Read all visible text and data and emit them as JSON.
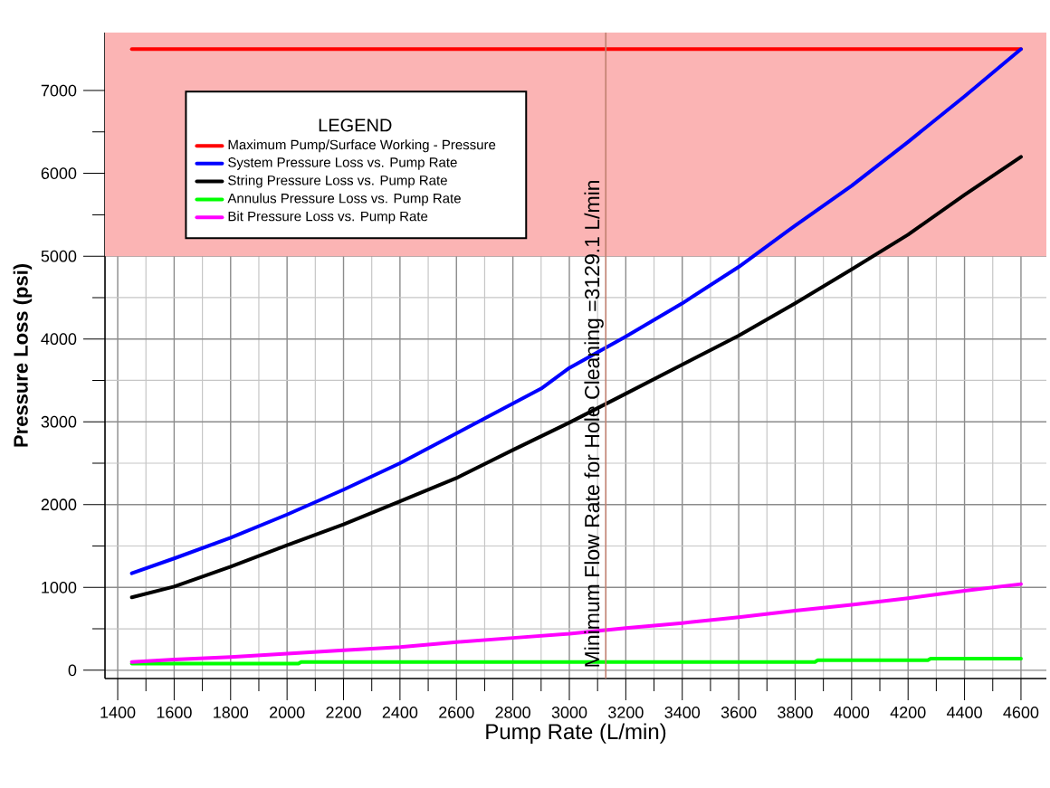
{
  "chart_data": {
    "type": "line",
    "xlabel": "Pump Rate (L/min)",
    "ylabel": "Pressure Loss (psi)",
    "legend_title": "LEGEND",
    "xlim": [
      1355,
      4690
    ],
    "ylim": [
      -100,
      7700
    ],
    "xticks": [
      1400,
      1600,
      1800,
      2000,
      2200,
      2400,
      2600,
      2800,
      3000,
      3200,
      3400,
      3600,
      3800,
      4000,
      4200,
      4400,
      4600
    ],
    "yticks": [
      0,
      1000,
      2000,
      3000,
      4000,
      5000,
      6000,
      7000
    ],
    "grid": true,
    "legend": "top left",
    "marker": "none",
    "line_style": "solid",
    "series": [
      {
        "name": "Maximum Pump/Surface Working - Pressure",
        "color": "#ff0000",
        "x": [
          1450,
          4600
        ],
        "values": [
          7500,
          7500
        ]
      },
      {
        "name": "System Pressure Loss vs. Pump Rate",
        "color": "#0000ff",
        "x": [
          1450,
          1600,
          1800,
          2000,
          2200,
          2400,
          2600,
          2800,
          2900,
          3000,
          3200,
          3400,
          3600,
          3800,
          4000,
          4200,
          4400,
          4600
        ],
        "values": [
          1170,
          1350,
          1600,
          1880,
          2180,
          2500,
          2860,
          3220,
          3400,
          3650,
          4030,
          4430,
          4870,
          5370,
          5850,
          6380,
          6930,
          7500
        ]
      },
      {
        "name": "String Pressure Loss vs. Pump Rate",
        "color": "#000000",
        "x": [
          1450,
          1600,
          1800,
          2000,
          2200,
          2400,
          2600,
          2800,
          3000,
          3200,
          3400,
          3600,
          3800,
          4000,
          4200,
          4400,
          4600
        ],
        "values": [
          880,
          1010,
          1250,
          1510,
          1760,
          2040,
          2320,
          2660,
          2990,
          3340,
          3690,
          4040,
          4430,
          4840,
          5260,
          5740,
          6200
        ]
      },
      {
        "name": "Annulus Pressure Loss vs. Pump Rate",
        "color": "#00ff00",
        "x": [
          1450,
          2040,
          2050,
          3870,
          3880,
          4270,
          4280,
          4600
        ],
        "values": [
          80,
          80,
          100,
          100,
          120,
          120,
          140,
          140
        ]
      },
      {
        "name": "Bit Pressure Loss vs. Pump Rate",
        "color": "#ff00ff",
        "x": [
          1450,
          1600,
          1800,
          2000,
          2200,
          2400,
          2600,
          2800,
          3000,
          3200,
          3400,
          3600,
          3800,
          4000,
          4200,
          4400,
          4600
        ],
        "values": [
          100,
          130,
          160,
          200,
          240,
          280,
          340,
          390,
          440,
          510,
          570,
          640,
          720,
          790,
          870,
          960,
          1040
        ]
      }
    ],
    "ref_lines": [
      {
        "axis": "x",
        "value": 3129.1,
        "label": "Minimum Flow Rate for Hole Cleaning =3129.1 L/min",
        "color": "#c08070"
      }
    ],
    "bands": [
      {
        "axis": "y",
        "from": 5000,
        "to": 7700,
        "color": "#fbb4b4"
      }
    ]
  }
}
